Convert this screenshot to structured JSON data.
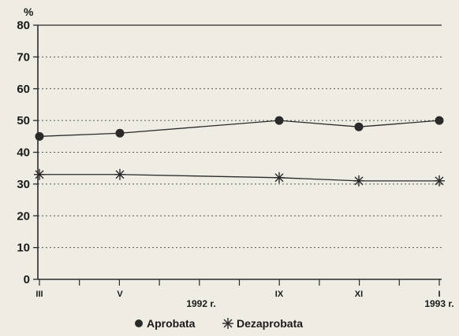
{
  "chart_data": {
    "type": "line",
    "y_unit": "%",
    "ylim": [
      0,
      80
    ],
    "yticks": [
      0,
      10,
      20,
      30,
      40,
      50,
      60,
      70,
      80
    ],
    "categories": [
      "III",
      "V",
      "IX",
      "XI",
      "I"
    ],
    "x_extra_labels": [
      "1992 r.",
      "1993 r."
    ],
    "grid": "horizontal-dotted",
    "legend_position": "bottom",
    "series": [
      {
        "name": "Aprobata",
        "marker": "filled-circle",
        "values": [
          45,
          46,
          50,
          48,
          50
        ]
      },
      {
        "name": "Dezaprobata",
        "marker": "asterisk",
        "values": [
          33,
          33,
          32,
          31,
          31
        ]
      }
    ],
    "colors": {
      "line": "#2a2a2a",
      "background": "#efece4",
      "grid": "#555555"
    }
  }
}
